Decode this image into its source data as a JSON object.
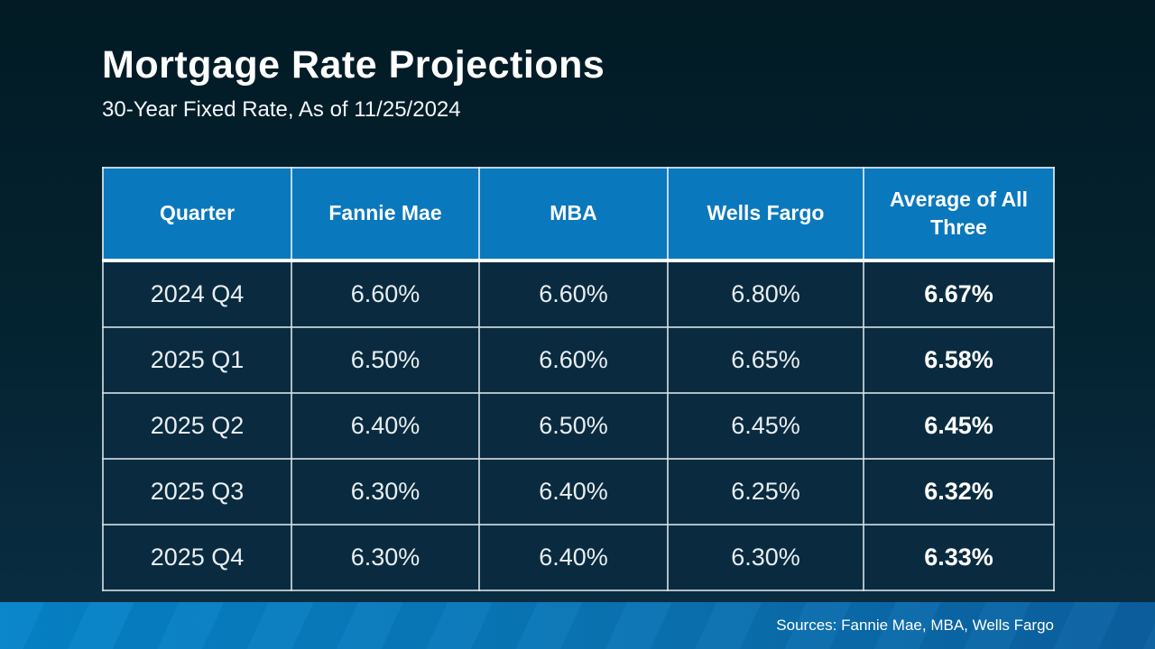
{
  "slide": {
    "title": "Mortgage Rate Projections",
    "subtitle": "30-Year Fixed Rate, As of 11/25/2024",
    "source_note": "Sources: Fannie Mae, MBA, Wells Fargo"
  },
  "colors": {
    "header_bg": "#0a78bc",
    "cell_bg": "#0a2b3f",
    "cell_border": "#d7e2e9",
    "background_top": "#021b25",
    "background_bottom": "#0a2e44",
    "footer_bar_left": "#0584ca",
    "footer_bar_right": "#0b60a0",
    "title_text": "#ffffff",
    "body_text": "#e9eef2"
  },
  "chart_data": {
    "type": "table",
    "title": "Mortgage Rate Projections",
    "subtitle": "30-Year Fixed Rate, As of 11/25/2024",
    "columns": [
      "Quarter",
      "Fannie Mae",
      "MBA",
      "Wells Fargo",
      "Average of All Three"
    ],
    "rows": [
      [
        "2024 Q4",
        "6.60%",
        "6.60%",
        "6.80%",
        "6.67%"
      ],
      [
        "2025 Q1",
        "6.50%",
        "6.60%",
        "6.65%",
        "6.58%"
      ],
      [
        "2025 Q2",
        "6.40%",
        "6.50%",
        "6.45%",
        "6.45%"
      ],
      [
        "2025 Q3",
        "6.30%",
        "6.40%",
        "6.25%",
        "6.32%"
      ],
      [
        "2025 Q4",
        "6.30%",
        "6.40%",
        "6.30%",
        "6.33%"
      ]
    ],
    "notes": "Last column (Average of All Three) rendered bold; projections of 30-year fixed mortgage rates by quarter from Fannie Mae, MBA and Wells Fargo",
    "source": "Sources: Fannie Mae, MBA, Wells Fargo"
  }
}
